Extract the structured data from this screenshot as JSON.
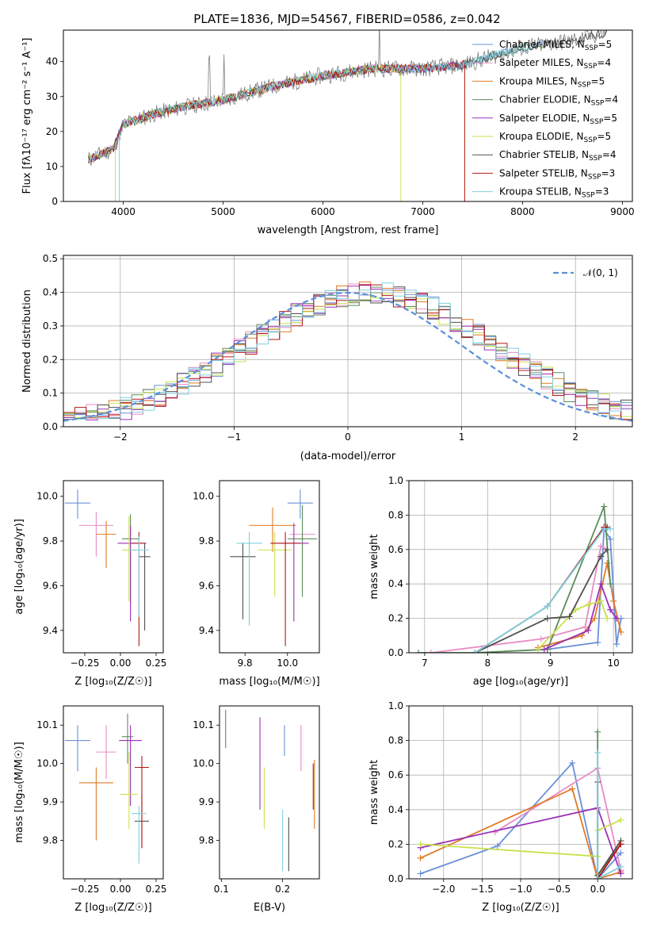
{
  "chart_data": {
    "title": "PLATE=1836, MJD=54567, FIBERID=0586, z=0.042",
    "colors": [
      "#6a90d8",
      "#e88cc4",
      "#e07b27",
      "#5c8c5c",
      "#9b30b8",
      "#c8e24c",
      "#505050",
      "#b01818",
      "#7fd0e0"
    ],
    "models": [
      "Chabrier MILES",
      "Salpeter MILES",
      "Kroupa MILES",
      "Chabrier ELODIE",
      "Salpeter ELODIE",
      "Kroupa ELODIE",
      "Chabrier STELIB",
      "Salpeter STELIB",
      "Kroupa STELIB"
    ],
    "n_ssp": [
      5,
      4,
      5,
      4,
      5,
      5,
      4,
      3,
      3
    ],
    "spectrum": {
      "type": "line",
      "xlabel": "wavelength [Angstrom, rest frame]",
      "ylabel": "Flux [fλ10⁻¹⁷ erg cm⁻² s⁻¹ A⁻¹]",
      "xlim": [
        3400,
        9100
      ],
      "ylim": [
        0,
        49
      ],
      "xticks": [
        "4000",
        "5000",
        "6000",
        "7000",
        "8000",
        "9000"
      ],
      "yticks": [
        "0",
        "10",
        "20",
        "30",
        "40"
      ],
      "continuum_x": [
        3650,
        3900,
        4000,
        4300,
        4600,
        5000,
        5500,
        6000,
        6500,
        7000,
        7400,
        8000,
        8500,
        8800
      ],
      "continuum_y": [
        12,
        15,
        22,
        25,
        27,
        29,
        33,
        36,
        38,
        38,
        39,
        44,
        46,
        48
      ],
      "legend_loc": "upper right"
    },
    "residuals": {
      "type": "line",
      "xlabel": "(data-model)/error",
      "ylabel": "Normed distribution",
      "xlim": [
        -2.5,
        2.5
      ],
      "ylim": [
        0,
        0.51
      ],
      "xticks": [
        "−2",
        "−1",
        "0",
        "1",
        "2"
      ],
      "yticks": [
        "0.0",
        "0.1",
        "0.2",
        "0.3",
        "0.4",
        "0.5"
      ],
      "normal_label": "𝒩(0, 1)",
      "legend_loc": "upper right"
    },
    "age_vs_Z": {
      "type": "scatter",
      "xlabel": "Z [log₁₀(Z/Z☉)]",
      "ylabel": "age  [log₁₀(age/yr)]",
      "xlim": [
        -0.4,
        0.3
      ],
      "ylim": [
        9.3,
        10.07
      ],
      "xticks": [
        "−0.25",
        "0.00",
        "0.25"
      ],
      "yticks": [
        "9.4",
        "9.6",
        "9.8",
        "10.0"
      ],
      "x": [
        -0.3,
        -0.17,
        -0.1,
        0.07,
        0.07,
        0.06,
        0.17,
        0.13,
        0.13
      ],
      "y": [
        9.97,
        9.87,
        9.83,
        9.81,
        9.79,
        9.76,
        9.73,
        9.79,
        9.76
      ],
      "xerr": [
        0.09,
        0.12,
        0.07,
        0.06,
        0.09,
        0.05,
        0.04,
        0.05,
        0.07
      ],
      "yerr_lo": [
        0.07,
        0.14,
        0.15,
        0.29,
        0.35,
        0.23,
        0.33,
        0.46,
        0.3
      ],
      "yerr_hi": [
        0.06,
        0.06,
        0.06,
        0.11,
        0.08,
        0.15,
        0.06,
        0.05,
        0.06
      ]
    },
    "age_vs_mass": {
      "type": "scatter",
      "xlabel": "mass [log₁₀(M/M☉)]",
      "ylabel": "",
      "xlim": [
        9.68,
        10.15
      ],
      "ylim": [
        9.3,
        10.07
      ],
      "xticks": [
        "9.8",
        "10.0"
      ],
      "yticks": [
        "9.4",
        "9.6",
        "9.8",
        "10.0"
      ],
      "x": [
        10.06,
        10.07,
        9.93,
        10.07,
        10.03,
        9.94,
        9.79,
        9.99,
        9.82
      ],
      "y": [
        9.97,
        9.83,
        9.87,
        9.81,
        9.79,
        9.76,
        9.73,
        9.79,
        9.79
      ],
      "xerr": [
        0.06,
        0.06,
        0.11,
        0.07,
        0.07,
        0.08,
        0.06,
        0.07,
        0.06
      ],
      "yerr_lo": [
        0.07,
        0.15,
        0.12,
        0.26,
        0.35,
        0.21,
        0.28,
        0.46,
        0.37
      ],
      "yerr_hi": [
        0.06,
        0.09,
        0.08,
        0.15,
        0.09,
        0.08,
        0.06,
        0.05,
        0.05
      ]
    },
    "mass_weight_vs_age": {
      "type": "line",
      "xlabel": "age  [log₁₀(age/yr)]",
      "ylabel": "mass weight",
      "xlim": [
        6.75,
        10.3
      ],
      "ylim": [
        0,
        1.0
      ],
      "xticks": [
        "7",
        "8",
        "9",
        "10"
      ],
      "yticks": [
        "0.0",
        "0.2",
        "0.4",
        "0.6",
        "0.8",
        "1.0"
      ],
      "series": [
        {
          "x": [
            8.95,
            9.75,
            9.85,
            9.95,
            10.05,
            10.12
          ],
          "y": [
            0.02,
            0.06,
            0.72,
            0.66,
            0.05,
            0.2
          ]
        },
        {
          "x": [
            7.1,
            8.85,
            9.55,
            9.8,
            9.9
          ],
          "y": [
            0.0,
            0.08,
            0.15,
            0.62,
            0.6
          ]
        },
        {
          "x": [
            8.8,
            9.5,
            9.7,
            9.9,
            10.0,
            10.12
          ],
          "y": [
            0.03,
            0.1,
            0.2,
            0.52,
            0.3,
            0.12
          ]
        },
        {
          "x": [
            6.9,
            7.8,
            8.95,
            9.85,
            9.95
          ],
          "y": [
            0.0,
            0.0,
            0.02,
            0.85,
            0.4
          ]
        },
        {
          "x": [
            8.9,
            9.6,
            9.8,
            9.95,
            10.05
          ],
          "y": [
            0.02,
            0.13,
            0.4,
            0.25,
            0.2
          ]
        },
        {
          "x": [
            8.8,
            9.4,
            9.6,
            9.8,
            9.9
          ],
          "y": [
            0.02,
            0.25,
            0.28,
            0.3,
            0.2
          ]
        },
        {
          "x": [
            7.8,
            8.95,
            9.3,
            9.8,
            9.9
          ],
          "y": [
            0.0,
            0.2,
            0.21,
            0.56,
            0.6
          ]
        },
        {
          "x": [
            7.8,
            8.95,
            9.85,
            9.9
          ],
          "y": [
            0.0,
            0.27,
            0.73,
            0.73
          ]
        },
        {
          "x": [
            7.8,
            8.95,
            9.85,
            9.95
          ],
          "y": [
            0.0,
            0.27,
            0.72,
            0.72
          ]
        }
      ]
    },
    "mass_vs_Z": {
      "type": "scatter",
      "xlabel": "Z [log₁₀(Z/Z☉)]",
      "ylabel": "mass [log₁₀(M/M☉)]",
      "xlim": [
        -0.4,
        0.3
      ],
      "ylim": [
        9.7,
        10.15
      ],
      "xticks": [
        "−0.25",
        "0.00",
        "0.25"
      ],
      "yticks": [
        "9.8",
        "9.9",
        "10.0",
        "10.1"
      ],
      "x": [
        -0.3,
        -0.1,
        -0.17,
        0.05,
        0.07,
        0.06,
        0.15,
        0.15,
        0.13
      ],
      "y": [
        10.06,
        10.03,
        9.95,
        10.07,
        10.06,
        9.92,
        9.85,
        9.99,
        9.87
      ],
      "xerr": [
        0.09,
        0.07,
        0.12,
        0.04,
        0.08,
        0.06,
        0.05,
        0.05,
        0.05
      ],
      "yerr_lo": [
        0.08,
        0.07,
        0.15,
        0.07,
        0.17,
        0.09,
        0.07,
        0.21,
        0.13
      ],
      "yerr_hi": [
        0.04,
        0.07,
        0.04,
        0.06,
        0.04,
        0.11,
        0.07,
        0.03,
        0.02
      ]
    },
    "mass_vs_EBV": {
      "type": "scatter",
      "xlabel": "E(B-V)",
      "ylabel": "",
      "xlim": [
        0.097,
        0.26
      ],
      "ylim": [
        9.7,
        10.15
      ],
      "xticks": [
        "0.1",
        "0.2"
      ],
      "yticks": [
        "9.8",
        "9.9",
        "10.0",
        "10.1"
      ],
      "x": [
        0.203,
        0.23,
        0.252,
        0.107,
        0.163,
        0.17,
        0.21,
        0.25,
        0.2
      ],
      "y": [
        10.06,
        10.04,
        9.92,
        10.09,
        10.0,
        9.91,
        9.79,
        9.94,
        9.8
      ],
      "yerr": [
        0.04,
        0.06,
        0.09,
        0.05,
        0.12,
        0.08,
        0.07,
        0.06,
        0.08
      ]
    },
    "mass_weight_vs_Z": {
      "type": "line",
      "xlabel": "Z [log₁₀(Z/Z☉)]",
      "ylabel": "mass weight",
      "xlim": [
        -2.45,
        0.45
      ],
      "ylim": [
        0,
        1.0
      ],
      "xticks": [
        "−2.0",
        "−1.5",
        "−1.0",
        "−0.5",
        "0.0"
      ],
      "yticks": [
        "0.0",
        "0.2",
        "0.4",
        "0.6",
        "0.8",
        "1.0"
      ],
      "series": [
        {
          "x": [
            -2.3,
            -1.3,
            -0.33,
            0.0,
            0.3
          ],
          "y": [
            0.03,
            0.19,
            0.67,
            0.0,
            0.15
          ]
        },
        {
          "x": [
            -1.33,
            0.0,
            0.3
          ],
          "y": [
            0.27,
            0.64,
            0.05
          ]
        },
        {
          "x": [
            -2.3,
            -0.33,
            0.0,
            0.3
          ],
          "y": [
            0.12,
            0.52,
            0.0,
            0.04
          ]
        },
        {
          "x": [
            0.0,
            0.0,
            0.3
          ],
          "y": [
            0.85,
            0.02,
            0.2
          ]
        },
        {
          "x": [
            -2.3,
            0.0,
            0.3
          ],
          "y": [
            0.18,
            0.41,
            0.03
          ]
        },
        {
          "x": [
            -2.3,
            0.0,
            0.0,
            0.3
          ],
          "y": [
            0.2,
            0.13,
            0.28,
            0.34
          ]
        },
        {
          "x": [
            0.0,
            0.0,
            0.3
          ],
          "y": [
            0.56,
            0.02,
            0.22
          ]
        },
        {
          "x": [
            0.0,
            0.3
          ],
          "y": [
            0.0,
            0.2
          ]
        },
        {
          "x": [
            0.0,
            0.0,
            0.3
          ],
          "y": [
            0.73,
            0.0,
            0.07
          ]
        }
      ]
    }
  }
}
